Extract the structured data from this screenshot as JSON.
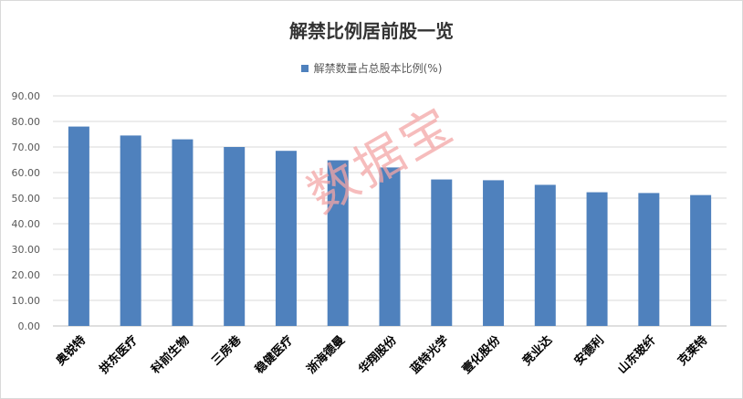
{
  "colors": {
    "bar": "#4f81bd",
    "grid": "#d9d9d9",
    "axis_text": "#595959",
    "watermark": "#f4a6a6"
  },
  "watermark_text": "数据宝",
  "chart_data": {
    "type": "bar",
    "title": "解禁比例居前股一览",
    "legend_position": "top",
    "grid": true,
    "ylim": [
      0,
      90
    ],
    "yticks": [
      "0.00",
      "10.00",
      "20.00",
      "30.00",
      "40.00",
      "50.00",
      "60.00",
      "70.00",
      "80.00",
      "90.00"
    ],
    "categories": [
      "奥锐特",
      "拱东医疗",
      "科前生物",
      "三房巷",
      "稳健医疗",
      "浙海德曼",
      "华翔股份",
      "蓝特光学",
      "壹化股份",
      "竞业达",
      "安德利",
      "山东玻纤",
      "克莱特"
    ],
    "series": [
      {
        "name": "解禁数量占总股本比例(%)",
        "values": [
          78.0,
          74.5,
          73.0,
          70.0,
          68.5,
          64.8,
          62.0,
          57.3,
          57.0,
          55.2,
          52.3,
          52.0,
          51.2
        ]
      }
    ]
  }
}
